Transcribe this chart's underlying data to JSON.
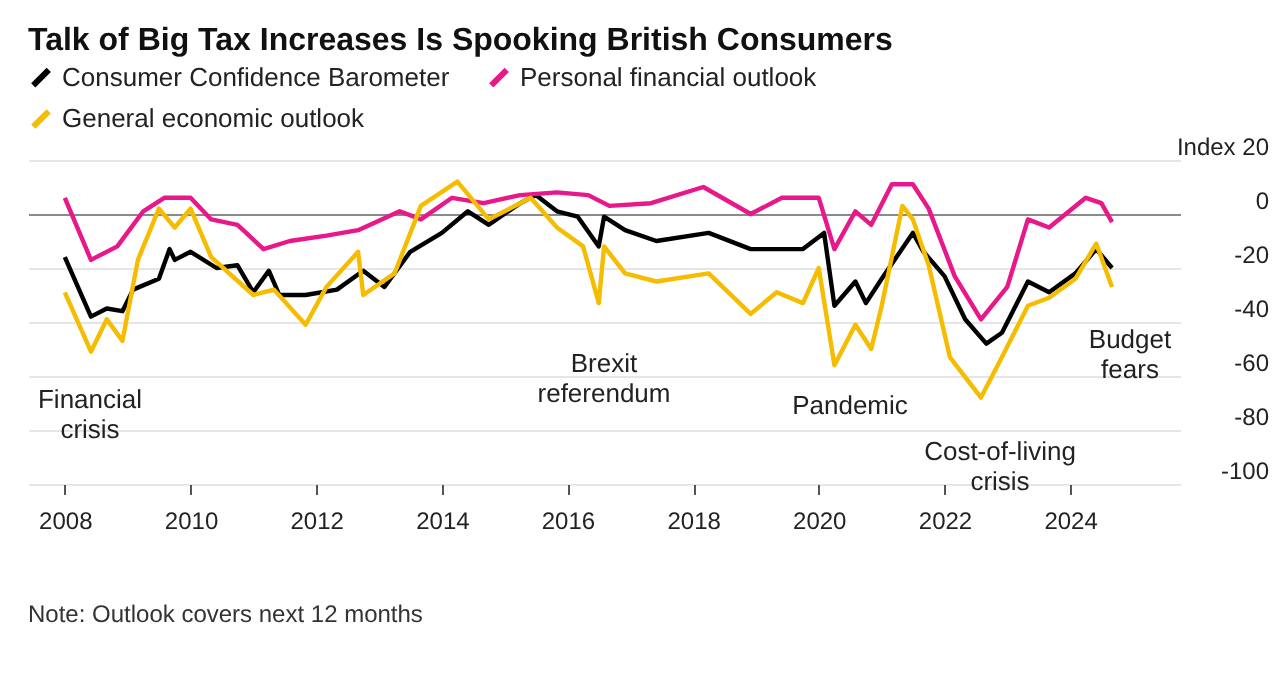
{
  "chart_data": {
    "type": "line",
    "title": "Talk of Big Tax Increases Is Spooking British Consumers",
    "legend": "top left",
    "grid": "y",
    "line_style": "solid",
    "marker": "none",
    "xlim": [
      "2007-06",
      "2025-10"
    ],
    "xticks": [
      "2008",
      "2010",
      "2012",
      "2014",
      "2016",
      "2018",
      "2020",
      "2022",
      "2024"
    ],
    "ylim": [
      -100,
      20
    ],
    "yticks": [
      {
        "value": 20,
        "label": "Index 20"
      },
      0,
      -20,
      -40,
      -60,
      -80,
      -100
    ],
    "series": [
      {
        "name": "Consumer Confidence Barometer",
        "color": "#000000",
        "x": [
          "2008-01",
          "2008-06",
          "2008-09",
          "2008-12",
          "2009-02",
          "2009-07",
          "2009-09",
          "2009-10",
          "2010-01",
          "2010-06",
          "2010-10",
          "2011-01",
          "2011-04",
          "2011-06",
          "2011-11",
          "2012-05",
          "2012-10",
          "2013-02",
          "2013-07",
          "2014-01",
          "2014-06",
          "2014-10",
          "2015-04",
          "2015-07",
          "2015-11",
          "2016-03",
          "2016-07",
          "2016-08",
          "2016-12",
          "2017-06",
          "2018-04",
          "2018-12",
          "2019-10",
          "2020-02",
          "2020-04",
          "2020-08",
          "2020-10",
          "2021-01",
          "2021-07",
          "2021-09",
          "2022-01",
          "2022-05",
          "2022-09",
          "2022-12",
          "2023-05",
          "2023-09",
          "2024-02",
          "2024-06",
          "2024-09"
        ],
        "values": [
          -16,
          -38,
          -35,
          -36,
          -28,
          -24,
          -13,
          -17,
          -14,
          -20,
          -19,
          -29,
          -21,
          -30,
          -30,
          -28,
          -21,
          -27,
          -14,
          -7,
          1,
          -4,
          4,
          7,
          1,
          -1,
          -12,
          -1,
          -6,
          -10,
          -7,
          -13,
          -13,
          -7,
          -34,
          -25,
          -33,
          -24,
          -7,
          -14,
          -23,
          -39,
          -48,
          -44,
          -25,
          -29,
          -22,
          -13,
          -20
        ]
      },
      {
        "name": "Personal financial outlook",
        "color": "#e8178a",
        "x": [
          "2008-01",
          "2008-06",
          "2008-11",
          "2009-04",
          "2009-08",
          "2010-01",
          "2010-05",
          "2010-10",
          "2011-03",
          "2011-08",
          "2012-03",
          "2012-09",
          "2013-05",
          "2013-09",
          "2014-03",
          "2014-09",
          "2015-04",
          "2015-11",
          "2016-05",
          "2016-09",
          "2017-05",
          "2018-03",
          "2018-12",
          "2019-06",
          "2020-01",
          "2020-04",
          "2020-08",
          "2020-11",
          "2021-03",
          "2021-07",
          "2021-10",
          "2022-03",
          "2022-08",
          "2023-01",
          "2023-05",
          "2023-09",
          "2024-04",
          "2024-07",
          "2024-09"
        ],
        "values": [
          6,
          -17,
          -12,
          1,
          6,
          6,
          -2,
          -4,
          -13,
          -10,
          -8,
          -6,
          1,
          -2,
          6,
          4,
          7,
          8,
          7,
          3,
          4,
          10,
          0,
          6,
          6,
          -13,
          1,
          -4,
          11,
          11,
          2,
          -23,
          -39,
          -27,
          -2,
          -5,
          6,
          4,
          -3
        ]
      },
      {
        "name": "General economic outlook",
        "color": "#f5bc00",
        "x": [
          "2008-01",
          "2008-06",
          "2008-09",
          "2008-12",
          "2009-03",
          "2009-07",
          "2009-10",
          "2010-01",
          "2010-05",
          "2011-01",
          "2011-05",
          "2011-11",
          "2012-03",
          "2012-09",
          "2012-10",
          "2013-04",
          "2013-09",
          "2014-04",
          "2014-10",
          "2015-06",
          "2015-11",
          "2016-04",
          "2016-07",
          "2016-08",
          "2016-12",
          "2017-06",
          "2018-04",
          "2018-12",
          "2019-05",
          "2019-10",
          "2020-01",
          "2020-04",
          "2020-08",
          "2020-11",
          "2021-01",
          "2021-05",
          "2021-07",
          "2021-10",
          "2022-02",
          "2022-08",
          "2022-12",
          "2023-05",
          "2023-09",
          "2024-02",
          "2024-06",
          "2024-09"
        ],
        "values": [
          -29,
          -51,
          -39,
          -47,
          -17,
          2,
          -5,
          2,
          -16,
          -30,
          -28,
          -41,
          -27,
          -14,
          -30,
          -22,
          3,
          12,
          -2,
          6,
          -5,
          -12,
          -33,
          -12,
          -22,
          -25,
          -22,
          -37,
          -29,
          -33,
          -20,
          -56,
          -41,
          -50,
          -34,
          3,
          -2,
          -19,
          -53,
          -68,
          -53,
          -34,
          -31,
          -24,
          -11,
          -27
        ]
      }
    ],
    "annotations": [
      "Financial crisis",
      "Brexit referendum",
      "Pandemic",
      "Cost-of-living crisis",
      "Budget fears",
      "Note: Outlook covers next 12 months"
    ]
  }
}
